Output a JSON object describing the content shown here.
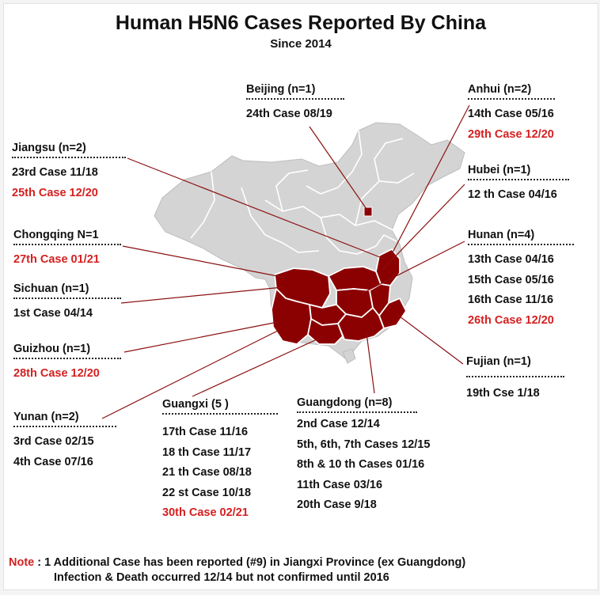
{
  "title": "Human H5N6 Cases Reported By China",
  "subtitle": "Since 2014",
  "colors": {
    "highlight": "#8b0000",
    "land": "#d4d4d4",
    "border": "#ffffff",
    "red_text": "#d42020",
    "leader": "#8b1010"
  },
  "provinces": [
    {
      "name": "Beijing (n=1)",
      "cases": [
        {
          "text": "24th Case 08/19",
          "red": false
        }
      ]
    },
    {
      "name": "Anhui (n=2)",
      "cases": [
        {
          "text": "14th Case 05/16",
          "red": false
        },
        {
          "text": "29th Case 12/20",
          "red": true
        }
      ]
    },
    {
      "name": "Jiangsu (n=2)",
      "cases": [
        {
          "text": "23rd Case 11/18",
          "red": false
        },
        {
          "text": "25th Case 12/20",
          "red": true
        }
      ]
    },
    {
      "name": "Hubei (n=1)",
      "cases": [
        {
          "text": "12 th Case 04/16",
          "red": false
        }
      ]
    },
    {
      "name": "Chongqing N=1",
      "cases": [
        {
          "text": "27th Case 01/21",
          "red": true
        }
      ]
    },
    {
      "name": "Hunan (n=4)",
      "cases": [
        {
          "text": "13th Case 04/16",
          "red": false
        },
        {
          "text": "15th Case 05/16",
          "red": false
        },
        {
          "text": "16th Case 11/16",
          "red": false
        },
        {
          "text": "26th Case 12/20",
          "red": true
        }
      ]
    },
    {
      "name": "Sichuan (n=1)",
      "cases": [
        {
          "text": "1st Case 04/14",
          "red": false
        }
      ]
    },
    {
      "name": "Guizhou (n=1)",
      "cases": [
        {
          "text": "28th Case 12/20",
          "red": true
        }
      ]
    },
    {
      "name": "Fujian (n=1)",
      "cases": [
        {
          "text": "19th Cse 1/18",
          "red": false
        }
      ]
    },
    {
      "name": "Yunan (n=2)",
      "cases": [
        {
          "text": "3rd Case 02/15",
          "red": false
        },
        {
          "text": "4th Case 07/16",
          "red": false
        }
      ]
    },
    {
      "name": "Guangxi (5 )",
      "cases": [
        {
          "text": "17th Case 11/16",
          "red": false
        },
        {
          "text": "18 th Case 11/17",
          "red": false
        },
        {
          "text": "21 th Case 08/18",
          "red": false
        },
        {
          "text": "22 st Case 10/18",
          "red": false
        },
        {
          "text": "30th Case 02/21",
          "red": true
        }
      ]
    },
    {
      "name": "Guangdong (n=8)",
      "cases": [
        {
          "text": "2nd Case 12/14",
          "red": false
        },
        {
          "text": "5th, 6th, 7th Cases 12/15",
          "red": false
        },
        {
          "text": "8th & 10 th Cases 01/16",
          "red": false
        },
        {
          "text": "11th Case 03/16",
          "red": false
        },
        {
          "text": "20th Case 9/18",
          "red": false
        }
      ]
    }
  ],
  "note": {
    "label": "Note",
    "line1": ": 1 Additional Case has been reported (#9) in Jiangxi Province (ex Guangdong)",
    "line2": "Infection & Death occurred 12/14 but not confirmed until 2016"
  }
}
